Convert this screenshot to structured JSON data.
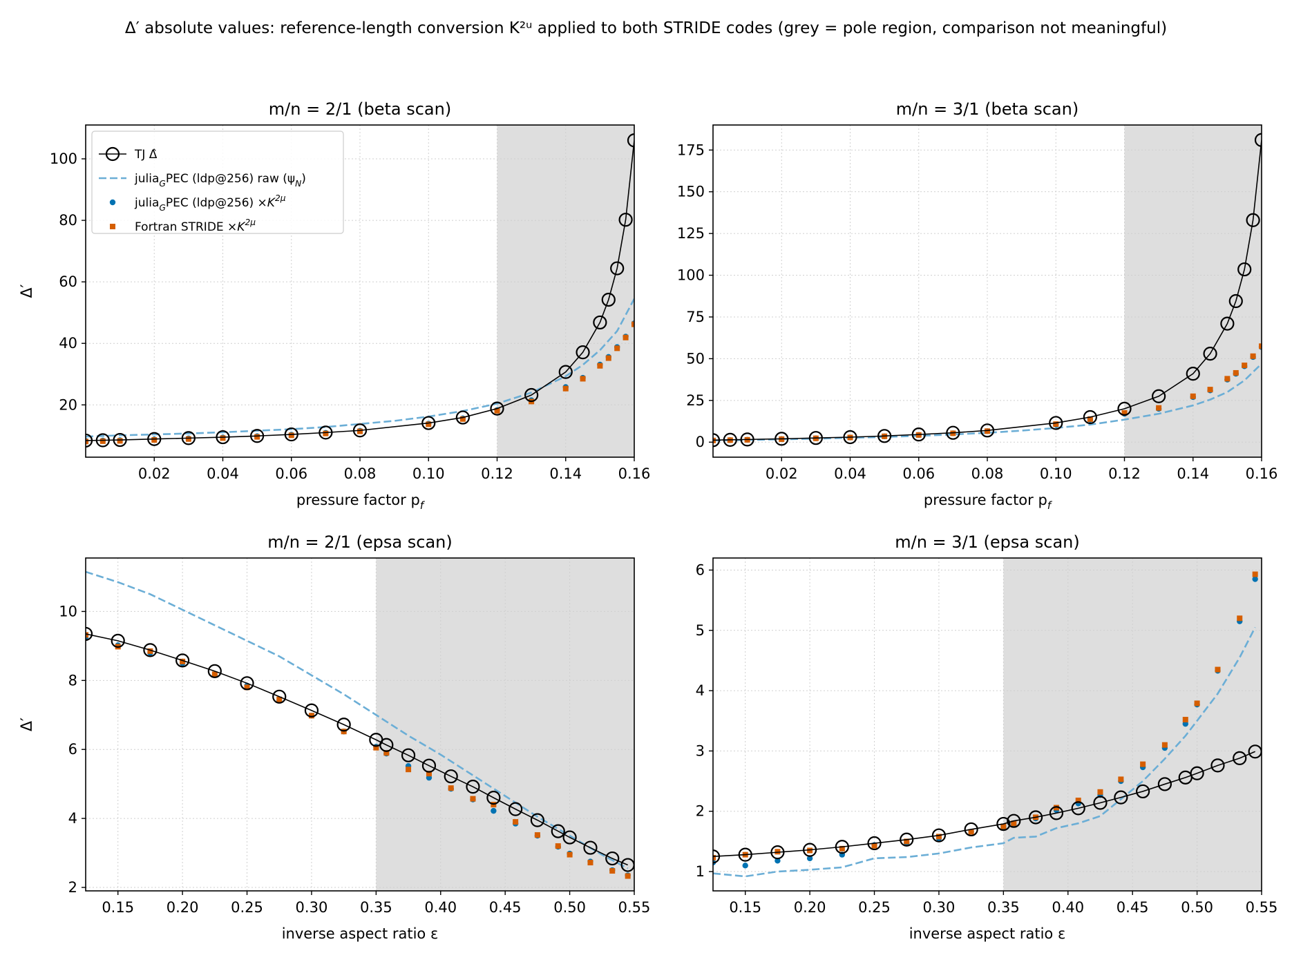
{
  "figure": {
    "title": "Δ′ absolute values: reference-length conversion K²ᵘ applied to both STRIDE codes  (grey = pole region, comparison not meaningful)",
    "colors": {
      "tj": "#000000",
      "raw": "#6baed6",
      "julia": "#0072b2",
      "fortran": "#d55e00",
      "pole": "#dedede",
      "grid": "#cfcfcf"
    }
  },
  "chart_data": [
    {
      "type": "line",
      "title": "m/n = 2/1   (beta scan)",
      "xlabel": "pressure factor  p_f",
      "ylabel": "Δ′",
      "xlim": [
        0.0,
        0.16
      ],
      "ylim": [
        3,
        111
      ],
      "xticks": [
        0.02,
        0.04,
        0.06,
        0.08,
        0.1,
        0.12,
        0.14,
        0.16
      ],
      "xtick_labels": [
        "0.02",
        "0.04",
        "0.06",
        "0.08",
        "0.10",
        "0.12",
        "0.14",
        "0.16"
      ],
      "yticks": [
        20,
        40,
        60,
        80,
        100
      ],
      "ytick_labels": [
        "20",
        "40",
        "60",
        "80",
        "100"
      ],
      "pole_region": [
        0.12,
        0.16
      ],
      "grid": true,
      "legend": {
        "position": "upper-left",
        "entries": [
          "TJ  Δ̂",
          "julia_GPEC (ldp@256)  raw (ψ_N)",
          "julia_GPEC (ldp@256)  ×K²ᵘ",
          "Fortran STRIDE  ×K²ᵘ"
        ]
      },
      "series": [
        {
          "name": "TJ  Δ̂",
          "style": "line-circle",
          "x": [
            0.0,
            0.005,
            0.01,
            0.02,
            0.03,
            0.04,
            0.05,
            0.06,
            0.07,
            0.08,
            0.1,
            0.11,
            0.12,
            0.13,
            0.14,
            0.145,
            0.15,
            0.1525,
            0.155,
            0.1575,
            0.16
          ],
          "y": [
            8.4,
            8.5,
            8.6,
            8.9,
            9.2,
            9.5,
            9.9,
            10.4,
            11.0,
            11.7,
            14.1,
            15.9,
            18.8,
            23.2,
            30.7,
            37.1,
            46.8,
            54.2,
            64.4,
            80.2,
            106.0
          ]
        },
        {
          "name": "julia_GPEC (ldp@256)  raw (ψ_N)",
          "style": "dashed",
          "x": [
            0.0,
            0.01,
            0.02,
            0.03,
            0.04,
            0.05,
            0.06,
            0.07,
            0.08,
            0.09,
            0.1,
            0.11,
            0.12,
            0.13,
            0.14,
            0.145,
            0.15,
            0.155,
            0.16
          ],
          "y": [
            9.7,
            10.1,
            10.4,
            10.7,
            11.1,
            11.6,
            12.1,
            12.8,
            13.8,
            14.8,
            16.2,
            18.0,
            20.4,
            24.0,
            29.3,
            33.0,
            37.8,
            44.0,
            54.5
          ]
        },
        {
          "name": "julia_GPEC (ldp@256)  ×K²ᵘ",
          "style": "dot",
          "x": [
            0.0,
            0.005,
            0.01,
            0.02,
            0.03,
            0.04,
            0.05,
            0.06,
            0.07,
            0.08,
            0.1,
            0.11,
            0.12,
            0.13,
            0.14,
            0.145,
            0.15,
            0.1525,
            0.155,
            0.1575,
            0.16
          ],
          "y": [
            8.3,
            8.4,
            8.5,
            8.8,
            9.1,
            9.4,
            9.8,
            10.3,
            10.9,
            11.6,
            13.9,
            15.6,
            18.3,
            21.5,
            25.8,
            28.8,
            33.1,
            35.6,
            38.8,
            42.2,
            46.5
          ]
        },
        {
          "name": "Fortran STRIDE  ×K²ᵘ",
          "style": "square",
          "x": [
            0.0,
            0.005,
            0.01,
            0.02,
            0.03,
            0.04,
            0.05,
            0.06,
            0.07,
            0.08,
            0.1,
            0.11,
            0.12,
            0.13,
            0.14,
            0.145,
            0.15,
            0.1525,
            0.155,
            0.1575,
            0.16
          ],
          "y": [
            8.1,
            8.2,
            8.3,
            8.6,
            8.9,
            9.2,
            9.6,
            10.1,
            10.7,
            11.4,
            13.7,
            15.4,
            18.1,
            21.1,
            25.3,
            28.5,
            32.7,
            35.2,
            38.4,
            41.9,
            46.2
          ]
        }
      ]
    },
    {
      "type": "line",
      "title": "m/n = 3/1   (beta scan)",
      "xlabel": "pressure factor  p_f",
      "ylabel": "",
      "xlim": [
        0.0,
        0.16
      ],
      "ylim": [
        -9,
        190
      ],
      "xticks": [
        0.02,
        0.04,
        0.06,
        0.08,
        0.1,
        0.12,
        0.14,
        0.16
      ],
      "xtick_labels": [
        "0.02",
        "0.04",
        "0.06",
        "0.08",
        "0.10",
        "0.12",
        "0.14",
        "0.16"
      ],
      "yticks": [
        0,
        25,
        50,
        75,
        100,
        125,
        150,
        175
      ],
      "ytick_labels": [
        "0",
        "25",
        "50",
        "75",
        "100",
        "125",
        "150",
        "175"
      ],
      "pole_region": [
        0.12,
        0.16
      ],
      "grid": true,
      "series": [
        {
          "name": "TJ  Δ̂",
          "style": "line-circle",
          "x": [
            0.0,
            0.005,
            0.01,
            0.02,
            0.03,
            0.04,
            0.05,
            0.06,
            0.07,
            0.08,
            0.1,
            0.11,
            0.12,
            0.13,
            0.14,
            0.145,
            0.15,
            0.1525,
            0.155,
            0.1575,
            0.16
          ],
          "y": [
            1.2,
            1.4,
            1.6,
            2.0,
            2.5,
            3.0,
            3.7,
            4.6,
            5.6,
            7.0,
            11.5,
            15.0,
            20.0,
            27.5,
            41.0,
            53.0,
            71.0,
            84.5,
            103.5,
            133.0,
            181.0
          ]
        },
        {
          "name": "julia_GPEC (ldp@256)  raw (ψ_N)",
          "style": "dashed",
          "x": [
            0.0,
            0.01,
            0.02,
            0.03,
            0.04,
            0.05,
            0.06,
            0.07,
            0.08,
            0.09,
            0.1,
            0.11,
            0.12,
            0.13,
            0.14,
            0.145,
            0.15,
            0.155,
            0.16
          ],
          "y": [
            1.0,
            1.3,
            1.7,
            2.1,
            2.6,
            3.1,
            3.8,
            4.6,
            5.6,
            6.9,
            8.5,
            10.5,
            13.5,
            17.0,
            22.0,
            25.5,
            30.0,
            37.0,
            47.0
          ]
        },
        {
          "name": "julia_GPEC (ldp@256)  ×K²ᵘ",
          "style": "dot",
          "x": [
            0.0,
            0.005,
            0.01,
            0.02,
            0.03,
            0.04,
            0.05,
            0.06,
            0.07,
            0.08,
            0.1,
            0.11,
            0.12,
            0.13,
            0.14,
            0.145,
            0.15,
            0.1525,
            0.155,
            0.1575,
            0.16
          ],
          "y": [
            1.0,
            1.2,
            1.4,
            1.8,
            2.3,
            2.8,
            3.5,
            4.3,
            5.3,
            6.6,
            10.5,
            13.5,
            17.0,
            20.0,
            27.0,
            31.0,
            37.5,
            41.0,
            45.5,
            51.0,
            57.0
          ]
        },
        {
          "name": "Fortran STRIDE  ×K²ᵘ",
          "style": "square",
          "x": [
            0.0,
            0.005,
            0.01,
            0.02,
            0.03,
            0.04,
            0.05,
            0.06,
            0.07,
            0.08,
            0.1,
            0.11,
            0.12,
            0.13,
            0.14,
            0.145,
            0.15,
            0.1525,
            0.155,
            0.1575,
            0.16
          ],
          "y": [
            1.0,
            1.2,
            1.4,
            1.8,
            2.3,
            2.8,
            3.5,
            4.3,
            5.3,
            6.6,
            10.8,
            13.8,
            17.5,
            20.5,
            27.5,
            31.5,
            38.0,
            41.5,
            46.0,
            51.5,
            57.5
          ]
        }
      ]
    },
    {
      "type": "line",
      "title": "m/n = 2/1   (epsa scan)",
      "xlabel": "inverse aspect ratio  ε",
      "ylabel": "Δ′",
      "xlim": [
        0.125,
        0.55
      ],
      "ylim": [
        1.9,
        11.55
      ],
      "xticks": [
        0.15,
        0.2,
        0.25,
        0.3,
        0.35,
        0.4,
        0.45,
        0.5,
        0.55
      ],
      "xtick_labels": [
        "0.15",
        "0.20",
        "0.25",
        "0.30",
        "0.35",
        "0.40",
        "0.45",
        "0.50",
        "0.55"
      ],
      "yticks": [
        2,
        4,
        6,
        8,
        10
      ],
      "ytick_labels": [
        "2",
        "4",
        "6",
        "8",
        "10"
      ],
      "pole_region": [
        0.35,
        0.55
      ],
      "grid": true,
      "series": [
        {
          "name": "TJ  Δ̂",
          "style": "line-circle",
          "x": [
            0.125,
            0.15,
            0.175,
            0.2,
            0.225,
            0.25,
            0.275,
            0.3,
            0.325,
            0.35,
            0.358,
            0.375,
            0.391,
            0.408,
            0.425,
            0.441,
            0.458,
            0.475,
            0.491,
            0.5,
            0.516,
            0.533,
            0.545
          ],
          "y": [
            9.35,
            9.15,
            8.88,
            8.58,
            8.27,
            7.92,
            7.53,
            7.13,
            6.72,
            6.28,
            6.13,
            5.83,
            5.53,
            5.22,
            4.92,
            4.6,
            4.27,
            3.95,
            3.63,
            3.45,
            3.15,
            2.84,
            2.65
          ]
        },
        {
          "name": "julia_GPEC (ldp@256)  raw (ψ_N)",
          "style": "dashed",
          "x": [
            0.125,
            0.15,
            0.175,
            0.2,
            0.225,
            0.25,
            0.275,
            0.3,
            0.325,
            0.35,
            0.375,
            0.4,
            0.425,
            0.45,
            0.475,
            0.5,
            0.525,
            0.545
          ],
          "y": [
            11.15,
            10.85,
            10.5,
            10.05,
            9.6,
            9.15,
            8.7,
            8.15,
            7.6,
            7.0,
            6.4,
            5.85,
            5.25,
            4.65,
            4.05,
            3.5,
            2.95,
            2.55
          ]
        },
        {
          "name": "julia_GPEC (ldp@256)  ×K²ᵘ",
          "style": "dot",
          "x": [
            0.125,
            0.15,
            0.175,
            0.2,
            0.225,
            0.25,
            0.275,
            0.3,
            0.325,
            0.35,
            0.358,
            0.375,
            0.391,
            0.408,
            0.425,
            0.441,
            0.458,
            0.475,
            0.491,
            0.5,
            0.516,
            0.533,
            0.545
          ],
          "y": [
            9.25,
            9.02,
            8.8,
            8.5,
            8.15,
            7.85,
            7.42,
            6.98,
            6.52,
            6.08,
            5.88,
            5.52,
            5.18,
            4.86,
            4.55,
            4.22,
            3.85,
            3.5,
            3.18,
            2.98,
            2.75,
            2.5,
            2.35
          ]
        },
        {
          "name": "Fortran STRIDE  ×K²ᵘ",
          "style": "square",
          "x": [
            0.125,
            0.15,
            0.175,
            0.2,
            0.225,
            0.25,
            0.275,
            0.3,
            0.325,
            0.35,
            0.358,
            0.375,
            0.391,
            0.408,
            0.425,
            0.441,
            0.458,
            0.475,
            0.491,
            0.5,
            0.516,
            0.533,
            0.545
          ],
          "y": [
            9.32,
            8.98,
            8.85,
            8.55,
            8.18,
            7.8,
            7.45,
            6.98,
            6.52,
            6.05,
            5.9,
            5.42,
            5.3,
            4.88,
            4.57,
            4.4,
            3.9,
            3.52,
            3.2,
            2.95,
            2.72,
            2.48,
            2.33
          ]
        }
      ]
    },
    {
      "type": "line",
      "title": "m/n = 3/1   (epsa scan)",
      "xlabel": "inverse aspect ratio  ε",
      "ylabel": "",
      "xlim": [
        0.125,
        0.55
      ],
      "ylim": [
        0.68,
        6.2
      ],
      "xticks": [
        0.15,
        0.2,
        0.25,
        0.3,
        0.35,
        0.4,
        0.45,
        0.5,
        0.55
      ],
      "xtick_labels": [
        "0.15",
        "0.20",
        "0.25",
        "0.30",
        "0.35",
        "0.40",
        "0.45",
        "0.50",
        "0.55"
      ],
      "yticks": [
        1,
        2,
        3,
        4,
        5,
        6
      ],
      "ytick_labels": [
        "1",
        "2",
        "3",
        "4",
        "5",
        "6"
      ],
      "pole_region": [
        0.35,
        0.55
      ],
      "grid": true,
      "series": [
        {
          "name": "TJ  Δ̂",
          "style": "line-circle",
          "x": [
            0.125,
            0.15,
            0.175,
            0.2,
            0.225,
            0.25,
            0.275,
            0.3,
            0.325,
            0.35,
            0.358,
            0.375,
            0.391,
            0.408,
            0.425,
            0.441,
            0.458,
            0.475,
            0.491,
            0.5,
            0.516,
            0.533,
            0.545
          ],
          "y": [
            1.25,
            1.28,
            1.32,
            1.36,
            1.41,
            1.47,
            1.53,
            1.6,
            1.7,
            1.79,
            1.84,
            1.9,
            1.97,
            2.05,
            2.14,
            2.23,
            2.33,
            2.45,
            2.56,
            2.63,
            2.76,
            2.88,
            2.99
          ]
        },
        {
          "name": "julia_GPEC (ldp@256)  raw (ψ_N)",
          "style": "dashed",
          "x": [
            0.125,
            0.15,
            0.175,
            0.2,
            0.225,
            0.25,
            0.275,
            0.3,
            0.325,
            0.35,
            0.358,
            0.375,
            0.391,
            0.408,
            0.425,
            0.441,
            0.458,
            0.475,
            0.491,
            0.5,
            0.516,
            0.533,
            0.545
          ],
          "y": [
            0.97,
            0.92,
            1.0,
            1.03,
            1.07,
            1.22,
            1.24,
            1.3,
            1.4,
            1.47,
            1.56,
            1.58,
            1.72,
            1.8,
            1.92,
            2.2,
            2.5,
            2.87,
            3.25,
            3.5,
            3.95,
            4.55,
            5.05
          ]
        },
        {
          "name": "julia_GPEC (ldp@256)  ×K²ᵘ",
          "style": "dot",
          "x": [
            0.125,
            0.15,
            0.175,
            0.2,
            0.225,
            0.25,
            0.275,
            0.3,
            0.325,
            0.35,
            0.358,
            0.375,
            0.391,
            0.408,
            0.425,
            0.441,
            0.458,
            0.475,
            0.491,
            0.5,
            0.516,
            0.533,
            0.545
          ],
          "y": [
            1.15,
            1.1,
            1.18,
            1.22,
            1.28,
            1.44,
            1.47,
            1.55,
            1.66,
            1.74,
            1.78,
            1.88,
            2.02,
            2.13,
            2.27,
            2.5,
            2.73,
            3.05,
            3.45,
            3.77,
            4.33,
            5.15,
            5.85
          ]
        },
        {
          "name": "Fortran STRIDE  ×K²ᵘ",
          "style": "square",
          "x": [
            0.125,
            0.15,
            0.175,
            0.2,
            0.225,
            0.25,
            0.275,
            0.3,
            0.325,
            0.35,
            0.358,
            0.375,
            0.391,
            0.408,
            0.425,
            0.441,
            0.458,
            0.475,
            0.491,
            0.5,
            0.516,
            0.533,
            0.545
          ],
          "y": [
            1.23,
            1.28,
            1.33,
            1.35,
            1.38,
            1.43,
            1.5,
            1.58,
            1.66,
            1.75,
            1.8,
            1.9,
            2.06,
            2.18,
            2.32,
            2.53,
            2.78,
            3.1,
            3.52,
            3.79,
            4.35,
            5.2,
            5.93
          ]
        }
      ]
    }
  ]
}
